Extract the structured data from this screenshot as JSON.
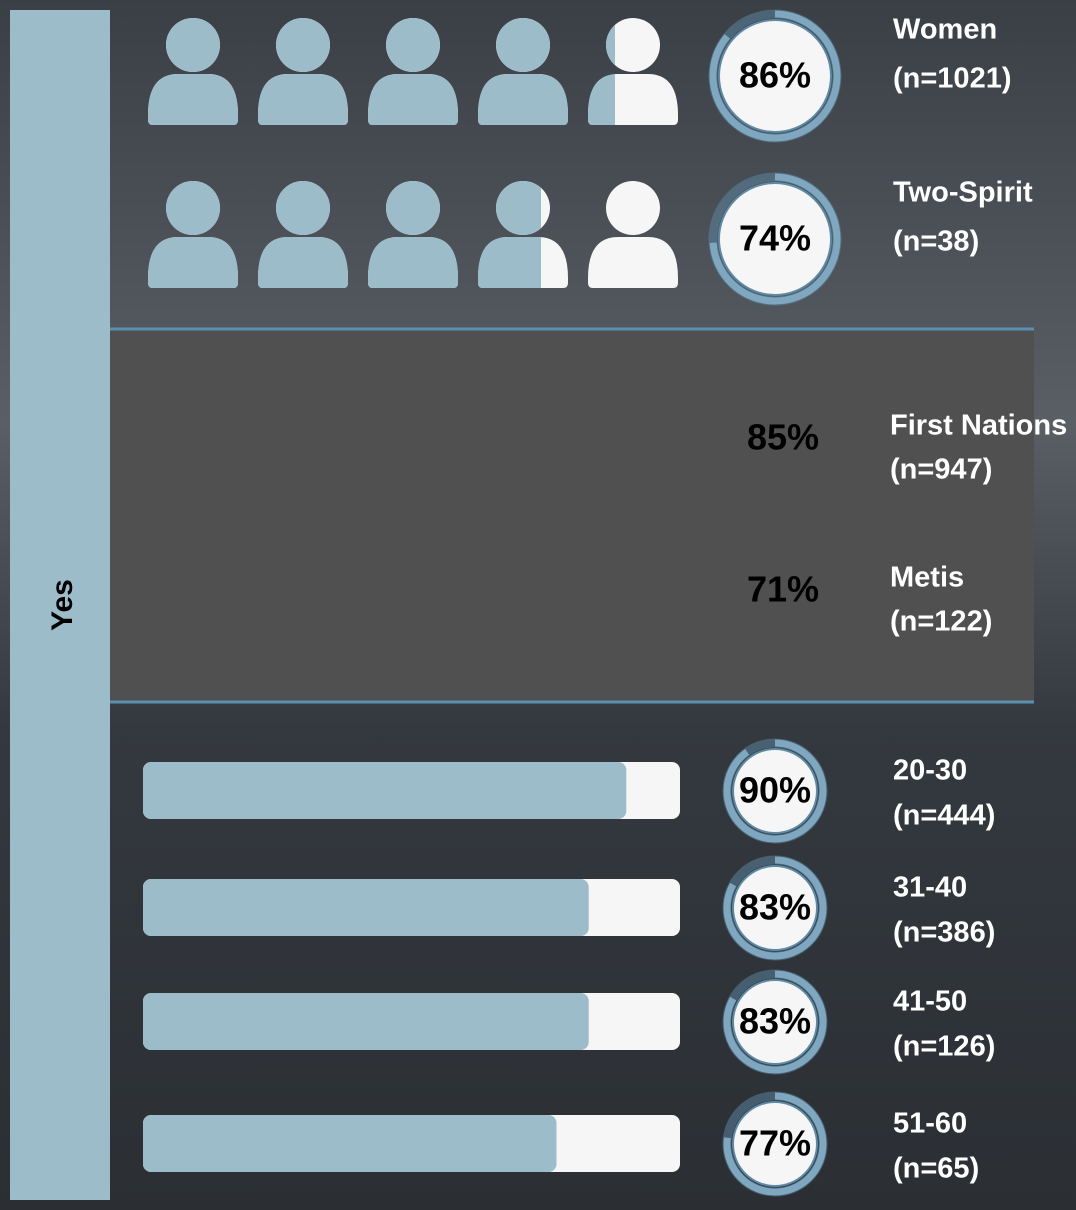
{
  "side_label": "Yes",
  "gender": [
    {
      "name": "Women",
      "n": "(n=1021)",
      "value": 86,
      "value_label": "86%"
    },
    {
      "name": "Two-Spirit",
      "n": "(n=38)",
      "value": 74,
      "value_label": "74%"
    }
  ],
  "identity": [
    {
      "name": "First Nations",
      "n": "(n=947)",
      "value": 85,
      "value_label": "85%"
    },
    {
      "name": "Metis",
      "n": "(n=122)",
      "value": 71,
      "value_label": "71%"
    }
  ],
  "age": [
    {
      "name": "20-30",
      "n": "(n=444)",
      "value": 90,
      "value_label": "90%"
    },
    {
      "name": "31-40",
      "n": "(n=386)",
      "value": 83,
      "value_label": "83%"
    },
    {
      "name": "41-50",
      "n": "(n=126)",
      "value": 83,
      "value_label": "83%"
    },
    {
      "name": "51-60",
      "n": "(n=65)",
      "value": 77,
      "value_label": "77%"
    }
  ]
}
